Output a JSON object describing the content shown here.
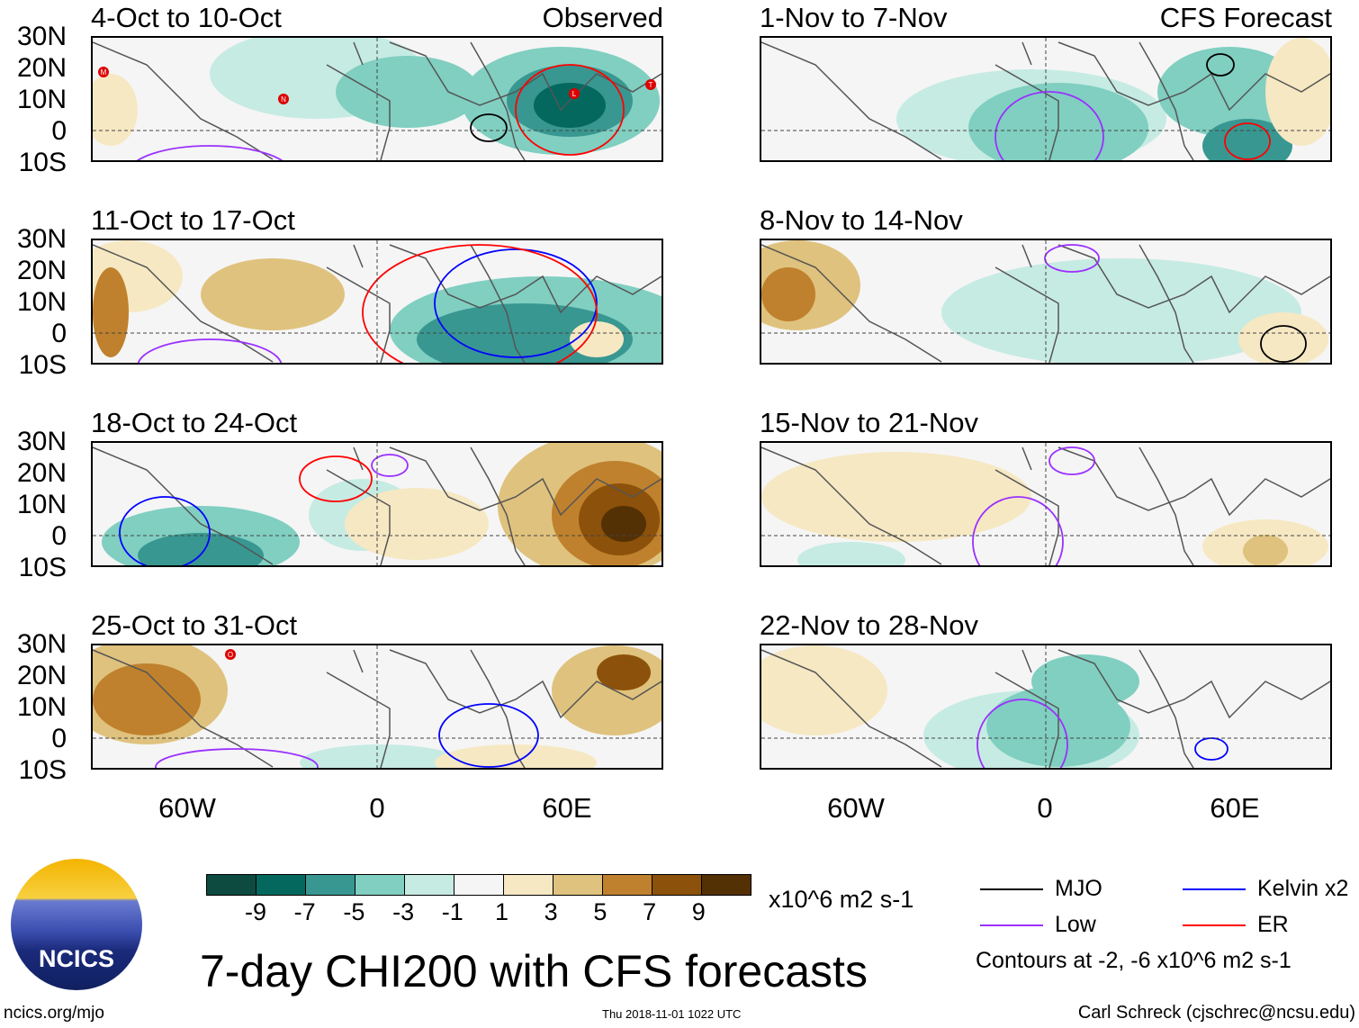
{
  "panels": [
    {
      "title": "4-Oct to 10-Oct",
      "tag": "Observed",
      "side": "left",
      "row": 0,
      "storms": [
        "M",
        "N",
        "L",
        "T"
      ]
    },
    {
      "title": "11-Oct to 17-Oct",
      "tag": "",
      "side": "left",
      "row": 1,
      "storms": []
    },
    {
      "title": "18-Oct to 24-Oct",
      "tag": "",
      "side": "left",
      "row": 2,
      "storms": []
    },
    {
      "title": "25-Oct to 31-Oct",
      "tag": "",
      "side": "left",
      "row": 3,
      "storms": [
        "O"
      ]
    },
    {
      "title": "1-Nov to 7-Nov",
      "tag": "CFS Forecast",
      "side": "right",
      "row": 0,
      "storms": []
    },
    {
      "title": "8-Nov to 14-Nov",
      "tag": "",
      "side": "right",
      "row": 1,
      "storms": []
    },
    {
      "title": "15-Nov to 21-Nov",
      "tag": "",
      "side": "right",
      "row": 2,
      "storms": []
    },
    {
      "title": "22-Nov to 28-Nov",
      "tag": "",
      "side": "right",
      "row": 3,
      "storms": []
    }
  ],
  "lat_labels": [
    "30N",
    "20N",
    "10N",
    "0",
    "10S"
  ],
  "lon_labels": [
    "60W",
    "0",
    "60E"
  ],
  "colorbar": {
    "colors": [
      "#0d4a40",
      "#04685f",
      "#389791",
      "#80cfc1",
      "#c6ebe3",
      "#f5f5f5",
      "#f6e8c3",
      "#dfc27d",
      "#bf812d",
      "#8c510a",
      "#543005"
    ],
    "labels": [
      "-9",
      "-7",
      "-5",
      "-3",
      "-1",
      "1",
      "3",
      "5",
      "7",
      "9"
    ],
    "units": "x10^6 m2 s-1"
  },
  "legend": {
    "items": [
      {
        "label": "MJO",
        "color": "#000000"
      },
      {
        "label": "Kelvin x2",
        "color": "#0000ff"
      },
      {
        "label": "Low",
        "color": "#9b30ff"
      },
      {
        "label": "ER",
        "color": "#ff0000"
      }
    ],
    "note": "Contours at -2, -6 x10^6 m2 s-1"
  },
  "logo_text": "NCICS",
  "main_title": "7-day CHI200 with CFS forecasts",
  "footer": {
    "url": "ncics.org/mjo",
    "timestamp": "Thu 2018-11-01 1022 UTC",
    "author": "Carl Schreck (cjschrec@ncsu.edu)"
  }
}
